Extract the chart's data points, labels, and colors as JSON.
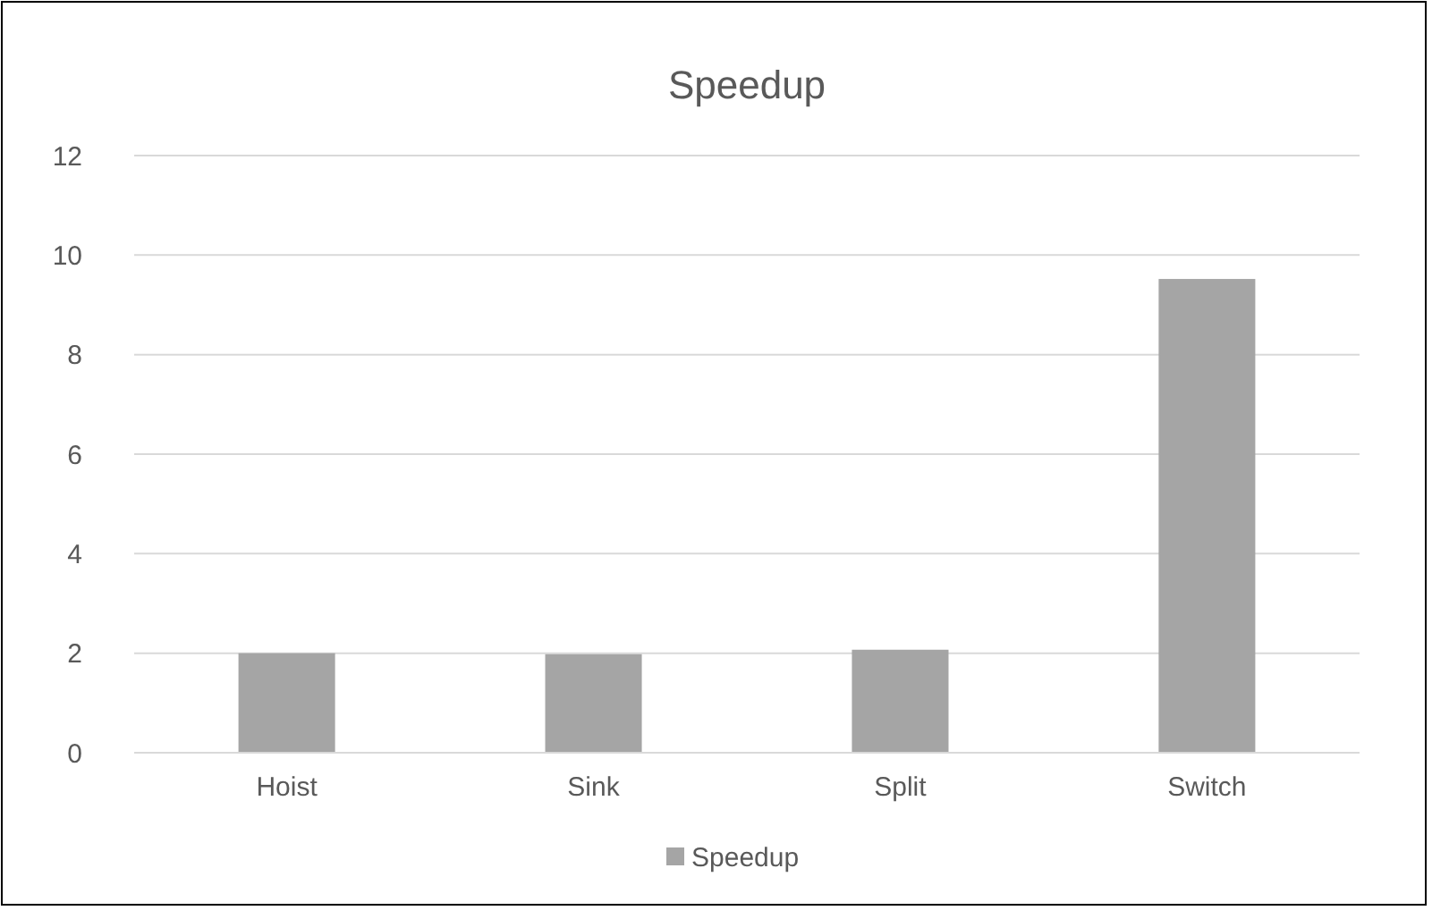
{
  "chart_data": {
    "type": "bar",
    "title": "Speedup",
    "categories": [
      "Hoist",
      "Sink",
      "Split",
      "Switch"
    ],
    "series": [
      {
        "name": "Speedup",
        "color": "#a5a5a5",
        "values": [
          2.0,
          1.98,
          2.07,
          9.52
        ]
      }
    ],
    "ylim": [
      0,
      12
    ],
    "yticks": [
      0,
      2,
      4,
      6,
      8,
      10,
      12
    ],
    "grid": "y",
    "legend": "bottom"
  }
}
